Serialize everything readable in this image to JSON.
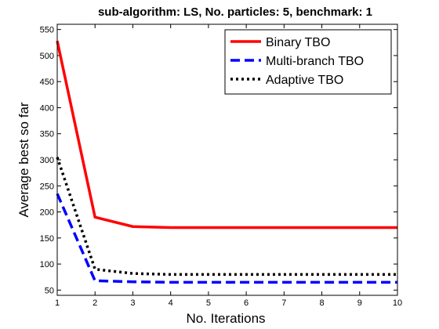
{
  "chart_data": {
    "type": "line",
    "title": "sub-algorithm: LS, No. particles: 5, benchmark: 1",
    "xlabel": "No. Iterations",
    "ylabel": "Average best so far",
    "xlim": [
      1,
      10
    ],
    "ylim": [
      40,
      560
    ],
    "xticks": [
      1,
      2,
      3,
      4,
      5,
      6,
      7,
      8,
      9,
      10
    ],
    "yticks": [
      50,
      100,
      150,
      200,
      250,
      300,
      350,
      400,
      450,
      500,
      550
    ],
    "grid": false,
    "legend_position": "top-right",
    "x": [
      1,
      2,
      3,
      4,
      5,
      6,
      7,
      8,
      9,
      10
    ],
    "series": [
      {
        "name": "Binary TBO",
        "color": "#ff0000",
        "style": "solid",
        "values": [
          528,
          190,
          172,
          170,
          170,
          170,
          170,
          170,
          170,
          170
        ]
      },
      {
        "name": "Multi-branch TBO",
        "color": "#0000ff",
        "style": "dashed",
        "values": [
          235,
          68,
          66,
          65,
          65,
          65,
          65,
          65,
          65,
          65
        ]
      },
      {
        "name": "Adaptive TBO",
        "color": "#000000",
        "style": "dotted",
        "values": [
          305,
          90,
          82,
          80,
          80,
          80,
          80,
          80,
          80,
          80
        ]
      }
    ]
  }
}
